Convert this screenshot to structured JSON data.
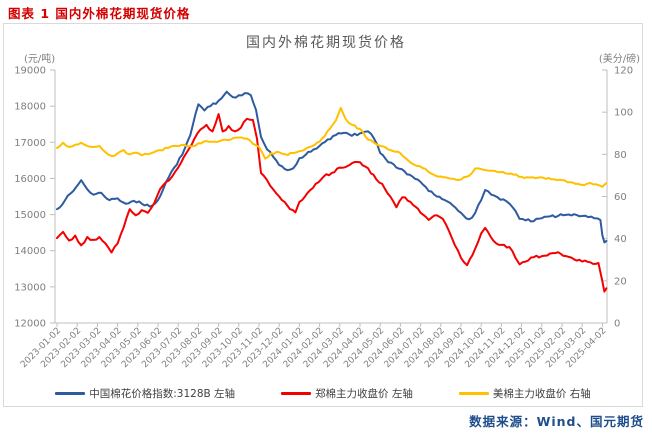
{
  "page": {
    "header": "图表 1 国内外棉花期现货价格",
    "source": "数据来源：Wind、国元期货"
  },
  "chart_data": {
    "type": "line",
    "title": "国内外棉花期现货价格",
    "grid": false,
    "legend_position": "bottom",
    "left_axis": {
      "unit": "(元/吨)",
      "min": 12000,
      "max": 19000,
      "step": 1000,
      "ticks": [
        19000,
        18000,
        17000,
        16000,
        15000,
        14000,
        13000,
        12000
      ]
    },
    "right_axis": {
      "unit": "(美分/磅)",
      "min": 0,
      "max": 120,
      "step": 20,
      "ticks": [
        120,
        100,
        80,
        60,
        40,
        20,
        0
      ]
    },
    "x_ticks": [
      "2023-01-02",
      "2023-02-02",
      "2023-03-02",
      "2023-04-02",
      "2023-05-02",
      "2023-06-02",
      "2023-07-02",
      "2023-08-02",
      "2023-09-02",
      "2023-10-02",
      "2023-11-02",
      "2023-12-02",
      "2024-01-02",
      "2024-02-02",
      "2024-03-02",
      "2024-04-02",
      "2024-05-02",
      "2024-06-02",
      "2024-07-02",
      "2024-08-02",
      "2024-09-02",
      "2024-10-02",
      "2024-11-02",
      "2024-12-02",
      "2025-01-02",
      "2025-02-02",
      "2025-03-02",
      "2025-04-02"
    ],
    "x_unit": "months_since_2023_01",
    "series": [
      {
        "name": "中国棉花价格指数:3128B  左轴",
        "axis": "left",
        "color": "#2e5aa0",
        "points": [
          [
            0,
            15150
          ],
          [
            0.4,
            15400
          ],
          [
            0.8,
            15650
          ],
          [
            1.2,
            15950
          ],
          [
            1.5,
            15700
          ],
          [
            1.8,
            15550
          ],
          [
            2.2,
            15600
          ],
          [
            2.6,
            15400
          ],
          [
            3.0,
            15450
          ],
          [
            3.4,
            15300
          ],
          [
            3.8,
            15380
          ],
          [
            4.2,
            15300
          ],
          [
            4.6,
            15220
          ],
          [
            5.0,
            15400
          ],
          [
            5.4,
            15900
          ],
          [
            5.8,
            16300
          ],
          [
            6.2,
            16650
          ],
          [
            6.6,
            17200
          ],
          [
            7.0,
            18050
          ],
          [
            7.3,
            17880
          ],
          [
            7.6,
            18000
          ],
          [
            8.0,
            18150
          ],
          [
            8.4,
            18400
          ],
          [
            8.7,
            18250
          ],
          [
            9.0,
            18300
          ],
          [
            9.3,
            18360
          ],
          [
            9.6,
            18300
          ],
          [
            9.85,
            17900
          ],
          [
            10.1,
            17150
          ],
          [
            10.4,
            16800
          ],
          [
            10.7,
            16600
          ],
          [
            11.0,
            16370
          ],
          [
            11.4,
            16230
          ],
          [
            11.7,
            16280
          ],
          [
            12.0,
            16560
          ],
          [
            12.3,
            16650
          ],
          [
            12.7,
            16800
          ],
          [
            13.0,
            16900
          ],
          [
            13.4,
            17080
          ],
          [
            13.8,
            17200
          ],
          [
            14.2,
            17260
          ],
          [
            14.6,
            17180
          ],
          [
            15.0,
            17250
          ],
          [
            15.4,
            17300
          ],
          [
            15.7,
            17100
          ],
          [
            16.0,
            16700
          ],
          [
            16.4,
            16450
          ],
          [
            16.8,
            16300
          ],
          [
            17.2,
            16200
          ],
          [
            17.6,
            16050
          ],
          [
            18.0,
            15900
          ],
          [
            18.4,
            15650
          ],
          [
            18.8,
            15500
          ],
          [
            19.2,
            15400
          ],
          [
            19.6,
            15250
          ],
          [
            20.0,
            15050
          ],
          [
            20.4,
            14870
          ],
          [
            20.7,
            15040
          ],
          [
            21.0,
            15400
          ],
          [
            21.2,
            15680
          ],
          [
            21.5,
            15550
          ],
          [
            21.8,
            15480
          ],
          [
            22.1,
            15420
          ],
          [
            22.4,
            15300
          ],
          [
            22.7,
            15100
          ],
          [
            22.9,
            14880
          ],
          [
            23.2,
            14840
          ],
          [
            23.6,
            14820
          ],
          [
            24.0,
            14900
          ],
          [
            24.4,
            14950
          ],
          [
            24.8,
            14960
          ],
          [
            25.2,
            14990
          ],
          [
            25.6,
            15010
          ],
          [
            26.0,
            14960
          ],
          [
            26.3,
            14930
          ],
          [
            26.6,
            14900
          ],
          [
            26.9,
            14850
          ],
          [
            27.0,
            14420
          ],
          [
            27.1,
            14230
          ],
          [
            27.2,
            14270
          ]
        ]
      },
      {
        "name": "郑棉主力收盘价  左轴",
        "axis": "left",
        "color": "#f40000",
        "points": [
          [
            0,
            14350
          ],
          [
            0.3,
            14520
          ],
          [
            0.6,
            14280
          ],
          [
            0.9,
            14420
          ],
          [
            1.2,
            14150
          ],
          [
            1.5,
            14380
          ],
          [
            1.8,
            14300
          ],
          [
            2.1,
            14380
          ],
          [
            2.4,
            14200
          ],
          [
            2.7,
            13950
          ],
          [
            3.0,
            14200
          ],
          [
            3.3,
            14650
          ],
          [
            3.6,
            15150
          ],
          [
            3.9,
            14980
          ],
          [
            4.2,
            15120
          ],
          [
            4.5,
            15050
          ],
          [
            4.8,
            15300
          ],
          [
            5.1,
            15700
          ],
          [
            5.4,
            15900
          ],
          [
            5.7,
            16050
          ],
          [
            6.0,
            16300
          ],
          [
            6.4,
            16700
          ],
          [
            6.8,
            17100
          ],
          [
            7.1,
            17350
          ],
          [
            7.4,
            17480
          ],
          [
            7.7,
            17300
          ],
          [
            8.0,
            17780
          ],
          [
            8.2,
            17300
          ],
          [
            8.5,
            17450
          ],
          [
            8.8,
            17300
          ],
          [
            9.1,
            17400
          ],
          [
            9.4,
            17650
          ],
          [
            9.7,
            17620
          ],
          [
            9.9,
            17100
          ],
          [
            10.1,
            16150
          ],
          [
            10.4,
            15950
          ],
          [
            10.7,
            15700
          ],
          [
            11.0,
            15500
          ],
          [
            11.4,
            15250
          ],
          [
            11.8,
            15060
          ],
          [
            12.0,
            15350
          ],
          [
            12.4,
            15600
          ],
          [
            12.8,
            15850
          ],
          [
            13.2,
            16050
          ],
          [
            13.6,
            16150
          ],
          [
            14.0,
            16300
          ],
          [
            14.5,
            16380
          ],
          [
            15.0,
            16450
          ],
          [
            15.4,
            16280
          ],
          [
            15.8,
            15980
          ],
          [
            16.1,
            15850
          ],
          [
            16.5,
            15500
          ],
          [
            16.8,
            15200
          ],
          [
            17.1,
            15480
          ],
          [
            17.5,
            15350
          ],
          [
            18.0,
            15050
          ],
          [
            18.4,
            14850
          ],
          [
            18.8,
            14980
          ],
          [
            19.1,
            14880
          ],
          [
            19.4,
            14550
          ],
          [
            19.7,
            14150
          ],
          [
            20.0,
            13800
          ],
          [
            20.3,
            13600
          ],
          [
            20.7,
            14050
          ],
          [
            21.0,
            14480
          ],
          [
            21.2,
            14630
          ],
          [
            21.6,
            14280
          ],
          [
            22.0,
            14160
          ],
          [
            22.4,
            14100
          ],
          [
            22.7,
            13800
          ],
          [
            22.9,
            13620
          ],
          [
            23.2,
            13700
          ],
          [
            23.6,
            13820
          ],
          [
            24.0,
            13850
          ],
          [
            24.4,
            13920
          ],
          [
            24.8,
            13960
          ],
          [
            25.2,
            13850
          ],
          [
            25.6,
            13760
          ],
          [
            26.0,
            13700
          ],
          [
            26.4,
            13680
          ],
          [
            26.8,
            13660
          ],
          [
            27.0,
            13150
          ],
          [
            27.1,
            12870
          ],
          [
            27.2,
            12960
          ]
        ]
      },
      {
        "name": "美棉主力收盘价  右轴",
        "axis": "right",
        "color": "#ffc000",
        "points": [
          [
            0,
            83
          ],
          [
            0.3,
            85.5
          ],
          [
            0.6,
            83.5
          ],
          [
            0.9,
            84.5
          ],
          [
            1.2,
            85.5
          ],
          [
            1.5,
            84
          ],
          [
            1.8,
            83.5
          ],
          [
            2.1,
            84
          ],
          [
            2.4,
            81
          ],
          [
            2.7,
            79.2
          ],
          [
            3.0,
            80.5
          ],
          [
            3.3,
            82
          ],
          [
            3.6,
            80
          ],
          [
            3.9,
            80.8
          ],
          [
            4.2,
            79.5
          ],
          [
            4.5,
            80
          ],
          [
            4.8,
            81
          ],
          [
            5.1,
            82
          ],
          [
            5.5,
            83
          ],
          [
            5.9,
            84
          ],
          [
            6.3,
            84.5
          ],
          [
            6.7,
            83.8
          ],
          [
            7.0,
            85.3
          ],
          [
            7.4,
            86.3
          ],
          [
            7.8,
            86
          ],
          [
            8.2,
            86.8
          ],
          [
            8.6,
            87
          ],
          [
            9.0,
            88
          ],
          [
            9.4,
            87.5
          ],
          [
            9.7,
            85
          ],
          [
            10.0,
            83.5
          ],
          [
            10.3,
            78
          ],
          [
            10.6,
            80.5
          ],
          [
            11.0,
            81
          ],
          [
            11.3,
            80
          ],
          [
            11.7,
            80.6
          ],
          [
            12.0,
            81.5
          ],
          [
            12.5,
            83.5
          ],
          [
            13.0,
            86
          ],
          [
            13.5,
            92
          ],
          [
            13.8,
            96
          ],
          [
            14.05,
            102
          ],
          [
            14.3,
            96.5
          ],
          [
            14.6,
            94
          ],
          [
            15.0,
            92
          ],
          [
            15.4,
            87
          ],
          [
            15.7,
            85.5
          ],
          [
            16.0,
            84
          ],
          [
            16.5,
            82
          ],
          [
            17.0,
            80.5
          ],
          [
            17.4,
            77
          ],
          [
            17.8,
            74.5
          ],
          [
            18.1,
            73.5
          ],
          [
            18.5,
            71
          ],
          [
            19.0,
            69.5
          ],
          [
            19.5,
            68.5
          ],
          [
            20.0,
            68
          ],
          [
            20.4,
            69.8
          ],
          [
            20.7,
            73.3
          ],
          [
            21.0,
            73
          ],
          [
            21.4,
            72.2
          ],
          [
            21.8,
            71.6
          ],
          [
            22.2,
            71
          ],
          [
            22.6,
            70.4
          ],
          [
            23.0,
            69.3
          ],
          [
            23.4,
            69
          ],
          [
            23.8,
            68.9
          ],
          [
            24.2,
            68.4
          ],
          [
            24.6,
            68.2
          ],
          [
            25.0,
            67.8
          ],
          [
            25.4,
            66.8
          ],
          [
            25.8,
            66
          ],
          [
            26.1,
            65.4
          ],
          [
            26.4,
            66.4
          ],
          [
            26.7,
            65.8
          ],
          [
            27.0,
            64.6
          ],
          [
            27.1,
            65.6
          ],
          [
            27.2,
            66.3
          ]
        ]
      }
    ]
  }
}
